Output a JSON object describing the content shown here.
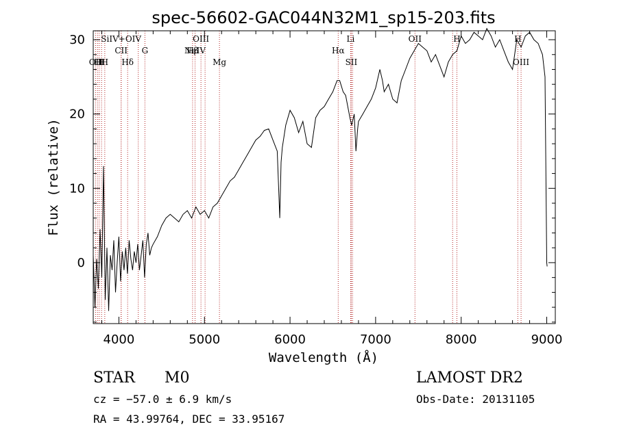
{
  "title": "spec-56602-GAC044N32M1_sp15-203.fits",
  "info": {
    "class": "STAR",
    "subclass": "M0",
    "survey": "LAMOST DR2",
    "cz": "cz = −57.0 ± 6.9 km/s",
    "obs_date": "Obs-Date: 20131105",
    "radec": "RA =  43.99764, DEC =  33.95167"
  },
  "chart_data": {
    "type": "line",
    "xlabel": "Wavelength (Å)",
    "ylabel": "Flux (relative)",
    "xlim": [
      3700,
      9100
    ],
    "ylim": [
      -8.2,
      31.2
    ],
    "xticks": [
      4000,
      5000,
      6000,
      7000,
      8000,
      9000
    ],
    "yticks": [
      0,
      10,
      20,
      30
    ],
    "grid": false,
    "line_color": "#000000",
    "marker_color": "#b22222",
    "markers": [
      {
        "x": 3727,
        "label": "OII",
        "row": 3
      },
      {
        "x": 3750,
        "label": "H",
        "row": 3
      },
      {
        "x": 3770,
        "label": "H",
        "row": 3
      },
      {
        "x": 3797,
        "label": "H",
        "row": 3
      },
      {
        "x": 3835,
        "label": "H",
        "row": 3
      },
      {
        "x": 4026,
        "label": "SiIV+OIV",
        "row": 1
      },
      {
        "x": 4026,
        "label": "CII",
        "row": 2
      },
      {
        "x": 4102,
        "label": "Hδ",
        "row": 3
      },
      {
        "x": 4226,
        "label": "",
        "row": 0
      },
      {
        "x": 4304,
        "label": "G",
        "row": 2
      },
      {
        "x": 4861,
        "label": "Hβ",
        "row": 2
      },
      {
        "x": 4890,
        "label": "NeIV",
        "row": 2
      },
      {
        "x": 4959,
        "label": "OIII",
        "row": 1
      },
      {
        "x": 5007,
        "label": "",
        "row": 0
      },
      {
        "x": 5175,
        "label": "Mg",
        "row": 3
      },
      {
        "x": 6563,
        "label": "Hα",
        "row": 2
      },
      {
        "x": 6708,
        "label": "Li",
        "row": 1
      },
      {
        "x": 6716,
        "label": "SII",
        "row": 3
      },
      {
        "x": 6731,
        "label": "",
        "row": 0
      },
      {
        "x": 7460,
        "label": "OII",
        "row": 1
      },
      {
        "x": 7900,
        "label": "",
        "row": 0
      },
      {
        "x": 7950,
        "label": "H",
        "row": 1
      },
      {
        "x": 8662,
        "label": "H",
        "row": 1
      },
      {
        "x": 8700,
        "label": "OIII",
        "row": 3
      }
    ],
    "spectrum": {
      "name": "flux",
      "x": [
        3700,
        3720,
        3740,
        3760,
        3780,
        3800,
        3820,
        3840,
        3860,
        3880,
        3900,
        3920,
        3940,
        3960,
        3980,
        4000,
        4020,
        4040,
        4060,
        4080,
        4100,
        4120,
        4140,
        4160,
        4180,
        4200,
        4220,
        4240,
        4260,
        4280,
        4300,
        4320,
        4340,
        4360,
        4380,
        4400,
        4450,
        4500,
        4550,
        4600,
        4650,
        4700,
        4750,
        4800,
        4850,
        4900,
        4950,
        5000,
        5050,
        5100,
        5150,
        5200,
        5250,
        5300,
        5350,
        5400,
        5450,
        5500,
        5550,
        5600,
        5650,
        5700,
        5750,
        5800,
        5850,
        5880,
        5895,
        5910,
        5950,
        6000,
        6050,
        6100,
        6150,
        6200,
        6250,
        6300,
        6350,
        6400,
        6450,
        6500,
        6550,
        6580,
        6620,
        6650,
        6700,
        6720,
        6750,
        6770,
        6790,
        6800,
        6850,
        6900,
        6950,
        7000,
        7050,
        7080,
        7100,
        7150,
        7200,
        7250,
        7300,
        7350,
        7400,
        7450,
        7500,
        7550,
        7600,
        7650,
        7700,
        7750,
        7800,
        7850,
        7900,
        7950,
        8000,
        8050,
        8100,
        8150,
        8200,
        8250,
        8300,
        8350,
        8400,
        8450,
        8500,
        8550,
        8600,
        8650,
        8700,
        8750,
        8800,
        8850,
        8900,
        8950,
        8980,
        9000,
        9005
      ],
      "values": [
        1.0,
        -6.0,
        0.5,
        -3.5,
        4.5,
        -2.0,
        13.0,
        -5.0,
        2.0,
        -6.5,
        1.0,
        -1.0,
        3.0,
        -4.0,
        0.0,
        3.5,
        -2.5,
        1.5,
        -1.0,
        2.0,
        -1.5,
        3.0,
        0.5,
        -1.0,
        1.5,
        0.0,
        2.5,
        -1.0,
        1.0,
        3.0,
        -2.0,
        2.5,
        4.0,
        1.0,
        2.0,
        2.5,
        3.5,
        5.0,
        6.0,
        6.5,
        6.0,
        5.5,
        6.5,
        7.0,
        6.0,
        7.5,
        6.5,
        7.0,
        6.0,
        7.5,
        8.0,
        9.0,
        10.0,
        11.0,
        11.5,
        12.5,
        13.5,
        14.5,
        15.5,
        16.5,
        17.0,
        17.8,
        18.0,
        16.5,
        15.0,
        6.0,
        13.5,
        15.5,
        18.5,
        20.5,
        19.5,
        17.5,
        19.0,
        16.0,
        15.5,
        19.5,
        20.5,
        21.0,
        22.0,
        23.0,
        24.5,
        24.5,
        23.0,
        22.5,
        19.5,
        18.5,
        20.0,
        15.0,
        18.0,
        19.0,
        20.0,
        21.0,
        22.0,
        23.5,
        26.0,
        24.5,
        23.0,
        24.0,
        22.0,
        21.5,
        24.5,
        26.0,
        27.5,
        28.5,
        29.5,
        29.0,
        28.5,
        27.0,
        28.0,
        26.5,
        25.0,
        27.0,
        28.0,
        28.5,
        30.5,
        29.5,
        30.0,
        31.0,
        30.5,
        30.0,
        31.5,
        30.5,
        29.0,
        30.0,
        28.5,
        27.0,
        26.0,
        30.0,
        29.0,
        30.5,
        31.0,
        30.0,
        29.5,
        28.0,
        25.0,
        0.0,
        -0.5
      ]
    }
  }
}
